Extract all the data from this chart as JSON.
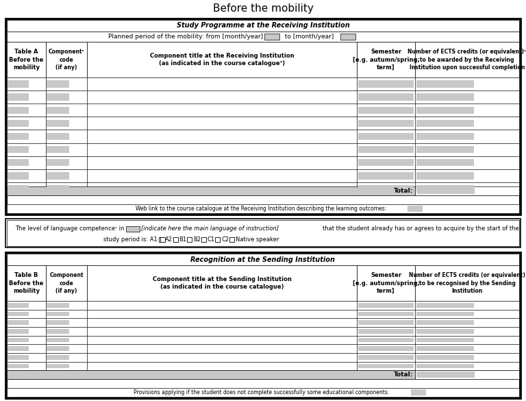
{
  "title": "Before the mobility",
  "title_fontsize": 11,
  "table_a_header": "Study Programme at the Receiving Institution",
  "table_b_header": "Recognition at the Sending Institution",
  "table_a_col1": "Table A\nBefore the\nmobility",
  "table_a_col2": "Componentᶜ\ncode\n(if any)",
  "table_a_col3": "Component title at the Receiving Institution\n(as indicated in the course catalogue⁷)",
  "table_a_col4": "Semester\n[e.g. autumn/spring;\nterm]",
  "table_a_col5": "Number of ECTS credits (or equivalent)ᶜ\nto be awarded by the Receiving\nInstitution upon successful completion",
  "table_b_col1": "Table B\nBefore the\nmobility",
  "table_b_col2": "Component\ncode\n(if any)",
  "table_b_col3": "Component title at the Sending Institution\n(as indicated in the course catalogue)",
  "table_b_col4": "Semester\n[e.g. autumn/spring;\nterm]",
  "table_b_col5": "Number of ECTS credits (or equivalent)\nto be recognised by the Sending\nInstitution",
  "period_text": "Planned period of the mobility: from [month/year]",
  "period_to": "to [month/year]",
  "total_label": "Total:",
  "weblink_text": "Web link to the course catalogue at the Receiving Institution describing the learning outcomes:",
  "lang_line1a": "The level of language competence",
  "lang_line1b": " in ",
  "lang_line1c": "[indicate here the main language of instruction]",
  "lang_line1d": " that the student already has or agrees to acquire by the start of the",
  "lang_line2": "study period is: A1",
  "lang_options": [
    "A2",
    "B1",
    "B2",
    "C1",
    "C2",
    "Native speaker"
  ],
  "footer_b": "Provisions applying if the student does not complete successfully some educational components:",
  "num_rows": 9,
  "gray": "#c8c8c8",
  "light_gray": "#c8c8c8",
  "white": "#ffffff",
  "bg": "#ffffff"
}
